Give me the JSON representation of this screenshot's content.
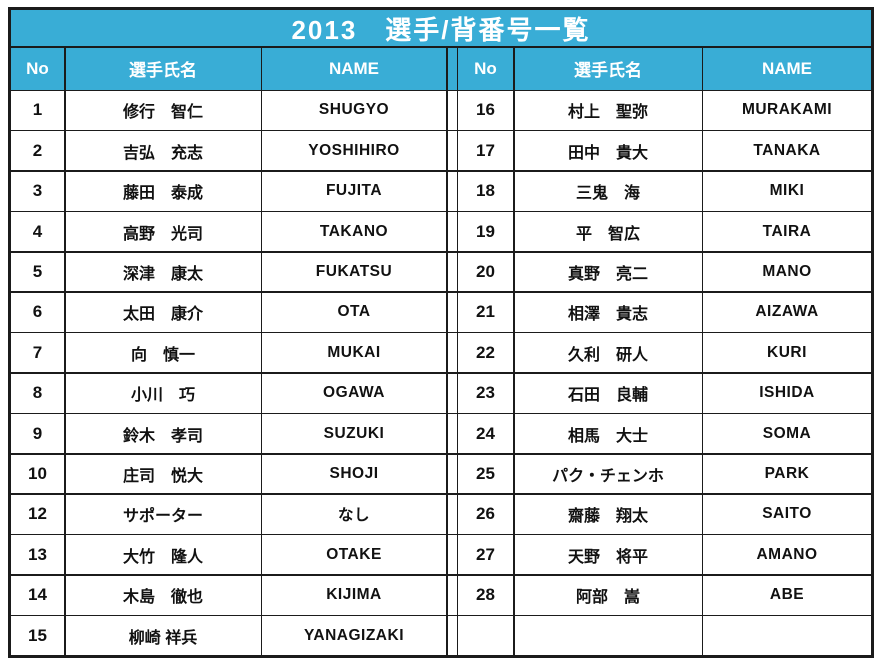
{
  "title": "2013　選手/背番号一覧",
  "columns": {
    "no": "No",
    "name_jp": "選手氏名",
    "name_en": "NAME"
  },
  "colors": {
    "header_blue": "#39add6",
    "header_text": "#ffffff",
    "border": "#1b1b1b",
    "body_text": "#111111",
    "body_bg": "#ffffff"
  },
  "left_rows": [
    {
      "no": "1",
      "jp": "修行　智仁",
      "en": "SHUGYO"
    },
    {
      "no": "2",
      "jp": "吉弘　充志",
      "en": "YOSHIHIRO"
    },
    {
      "no": "3",
      "jp": "藤田　泰成",
      "en": "FUJITA"
    },
    {
      "no": "4",
      "jp": "高野　光司",
      "en": "TAKANO"
    },
    {
      "no": "5",
      "jp": "深津　康太",
      "en": "FUKATSU"
    },
    {
      "no": "6",
      "jp": "太田　康介",
      "en": "OTA"
    },
    {
      "no": "7",
      "jp": "向　慎一",
      "en": "MUKAI"
    },
    {
      "no": "8",
      "jp": "小川　巧",
      "en": "OGAWA"
    },
    {
      "no": "9",
      "jp": "鈴木　孝司",
      "en": "SUZUKI"
    },
    {
      "no": "10",
      "jp": "庄司　悦大",
      "en": "SHOJI"
    },
    {
      "no": "12",
      "jp": "サポーター",
      "en": "なし"
    },
    {
      "no": "13",
      "jp": "大竹　隆人",
      "en": "OTAKE"
    },
    {
      "no": "14",
      "jp": "木島　徹也",
      "en": "KIJIMA"
    },
    {
      "no": "15",
      "jp": "柳崎 祥兵",
      "en": "YANAGIZAKI"
    }
  ],
  "right_rows": [
    {
      "no": "16",
      "jp": "村上　聖弥",
      "en": "MURAKAMI"
    },
    {
      "no": "17",
      "jp": "田中　貴大",
      "en": "TANAKA"
    },
    {
      "no": "18",
      "jp": "三鬼　海",
      "en": "MIKI"
    },
    {
      "no": "19",
      "jp": "平　智広",
      "en": "TAIRA"
    },
    {
      "no": "20",
      "jp": "真野　亮二",
      "en": "MANO"
    },
    {
      "no": "21",
      "jp": "相澤　貴志",
      "en": "AIZAWA"
    },
    {
      "no": "22",
      "jp": "久利　研人",
      "en": "KURI"
    },
    {
      "no": "23",
      "jp": "石田　良輔",
      "en": "ISHIDA"
    },
    {
      "no": "24",
      "jp": "相馬　大士",
      "en": "SOMA"
    },
    {
      "no": "25",
      "jp": "パク・チェンホ",
      "en": "PARK"
    },
    {
      "no": "26",
      "jp": "齋藤　翔太",
      "en": "SAITO"
    },
    {
      "no": "27",
      "jp": "天野　将平",
      "en": "AMANO"
    },
    {
      "no": "28",
      "jp": "阿部　嵩",
      "en": "ABE"
    },
    {
      "no": "",
      "jp": "",
      "en": ""
    }
  ]
}
